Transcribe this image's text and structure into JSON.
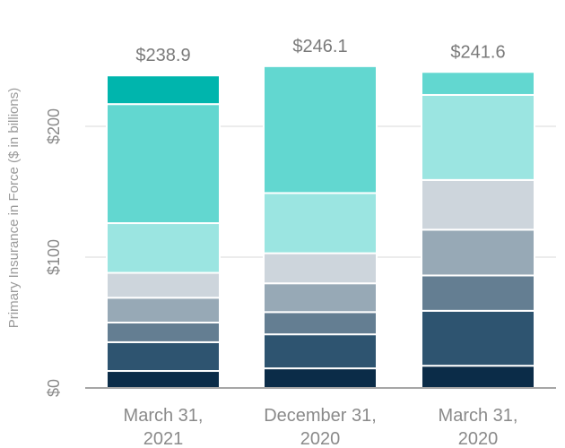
{
  "chart_data": {
    "type": "bar",
    "stacked": true,
    "ylabel": "Primary Insurance in Force ($ in billions)",
    "ylim": [
      0,
      250
    ],
    "yticks": [
      {
        "value": 0,
        "label": "$0"
      },
      {
        "value": 100,
        "label": "$100"
      },
      {
        "value": 200,
        "label": "$200"
      }
    ],
    "grid": true,
    "categories": [
      [
        "March 31,",
        "2021"
      ],
      [
        "December 31,",
        "2020"
      ],
      [
        "March 31,",
        "2020"
      ]
    ],
    "totals": [
      "$238.9",
      "$246.1",
      "$241.6"
    ],
    "series": [
      {
        "color": "#0b2c48",
        "values": [
          13,
          15,
          17
        ]
      },
      {
        "color": "#2e5470",
        "values": [
          22,
          26,
          42
        ]
      },
      {
        "color": "#647e92",
        "values": [
          15,
          17,
          27
        ]
      },
      {
        "color": "#97a9b6",
        "values": [
          19,
          22,
          35
        ]
      },
      {
        "color": "#cdd5dc",
        "values": [
          19,
          23,
          38
        ]
      },
      {
        "color": "#9be5e1",
        "values": [
          38,
          46,
          65
        ]
      },
      {
        "color": "#62d7d0",
        "values": [
          91,
          97,
          0
        ]
      },
      {
        "color": "#62d7d0",
        "values": [
          0,
          0,
          17.6
        ]
      },
      {
        "color": "#00b5ad",
        "values": [
          21.9,
          0,
          0
        ]
      }
    ]
  }
}
